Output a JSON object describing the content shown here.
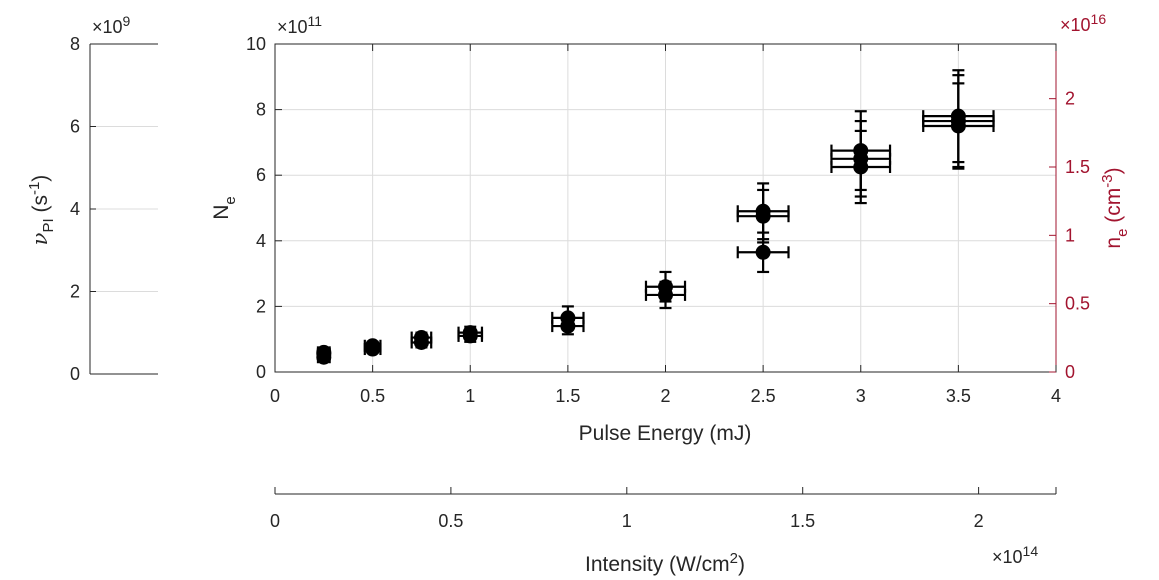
{
  "colors": {
    "axis": "#262626",
    "right_axis": "#A2142F",
    "markers": "#000000",
    "grid": "#dcdcdc"
  },
  "left_panel": {
    "exponent": "×10",
    "exponent_power": "9",
    "ylabel_symbol": "ν",
    "ylabel_sub": "PI",
    "ylabel_unit_open": " (s",
    "ylabel_unit_pow": "-1",
    "ylabel_unit_close": ")",
    "yticks": [
      "0",
      "2",
      "4",
      "6",
      "8"
    ],
    "ylim": [
      0,
      8
    ]
  },
  "main": {
    "x_exponent": "",
    "y_exponent": "×10",
    "y_exponent_power": "11",
    "right_exponent": "×10",
    "right_exponent_power": "16",
    "xlabel": "Pulse Energy (mJ)",
    "ylabel": "N",
    "ylabel_sub": "e",
    "right_label_main": "n",
    "right_label_sub": "e",
    "right_label_unit_open": " (cm",
    "right_label_unit_pow": "-3",
    "right_label_unit_close": ")",
    "xticks": [
      "0",
      "0.5",
      "1",
      "1.5",
      "2",
      "2.5",
      "3",
      "3.5",
      "4"
    ],
    "yticks": [
      "0",
      "2",
      "4",
      "6",
      "8",
      "10"
    ],
    "right_ticks": [
      "0",
      "0.5",
      "1",
      "1.5",
      "2"
    ]
  },
  "intensity_axis": {
    "label_main": "Intensity (W/cm",
    "label_pow": "2",
    "label_close": ")",
    "exponent": "×10",
    "exponent_power": "14",
    "ticks": [
      "0",
      "0.5",
      "1",
      "1.5",
      "2"
    ]
  },
  "chart_data": {
    "type": "scatter",
    "grid": true,
    "xlim": [
      0,
      4
    ],
    "ylim": [
      0,
      10
    ],
    "right_ylim": [
      0,
      2.4
    ],
    "intensity_lim": [
      0,
      2.22
    ],
    "x_multiplier": "1",
    "y_multiplier": "1e11",
    "series": [
      {
        "marker": "filled-circle",
        "points": [
          {
            "x": 0.25,
            "y": 0.45,
            "xerr": 0.03,
            "yerr": 0.08
          },
          {
            "x": 0.25,
            "y": 0.55,
            "xerr": 0.03,
            "yerr": 0.08
          },
          {
            "x": 0.25,
            "y": 0.6,
            "xerr": 0.03,
            "yerr": 0.08
          },
          {
            "x": 0.5,
            "y": 0.7,
            "xerr": 0.04,
            "yerr": 0.12
          },
          {
            "x": 0.5,
            "y": 0.8,
            "xerr": 0.04,
            "yerr": 0.12
          },
          {
            "x": 0.75,
            "y": 0.9,
            "xerr": 0.05,
            "yerr": 0.15
          },
          {
            "x": 0.75,
            "y": 1.05,
            "xerr": 0.05,
            "yerr": 0.15
          },
          {
            "x": 1.0,
            "y": 1.1,
            "xerr": 0.06,
            "yerr": 0.18
          },
          {
            "x": 1.0,
            "y": 1.2,
            "xerr": 0.06,
            "yerr": 0.18
          },
          {
            "x": 1.5,
            "y": 1.4,
            "xerr": 0.08,
            "yerr": 0.25
          },
          {
            "x": 1.5,
            "y": 1.65,
            "xerr": 0.08,
            "yerr": 0.35
          },
          {
            "x": 2.0,
            "y": 2.35,
            "xerr": 0.1,
            "yerr": 0.4
          },
          {
            "x": 2.0,
            "y": 2.6,
            "xerr": 0.1,
            "yerr": 0.45
          },
          {
            "x": 2.5,
            "y": 3.65,
            "xerr": 0.13,
            "yerr": 0.6
          },
          {
            "x": 2.5,
            "y": 4.75,
            "xerr": 0.13,
            "yerr": 0.8
          },
          {
            "x": 2.5,
            "y": 4.9,
            "xerr": 0.13,
            "yerr": 0.85
          },
          {
            "x": 3.0,
            "y": 6.25,
            "xerr": 0.15,
            "yerr": 1.1
          },
          {
            "x": 3.0,
            "y": 6.5,
            "xerr": 0.15,
            "yerr": 1.15
          },
          {
            "x": 3.0,
            "y": 6.75,
            "xerr": 0.15,
            "yerr": 1.2
          },
          {
            "x": 3.5,
            "y": 7.5,
            "xerr": 0.18,
            "yerr": 1.3
          },
          {
            "x": 3.5,
            "y": 7.65,
            "xerr": 0.18,
            "yerr": 1.4
          },
          {
            "x": 3.5,
            "y": 7.8,
            "xerr": 0.18,
            "yerr": 1.4
          }
        ]
      }
    ]
  }
}
